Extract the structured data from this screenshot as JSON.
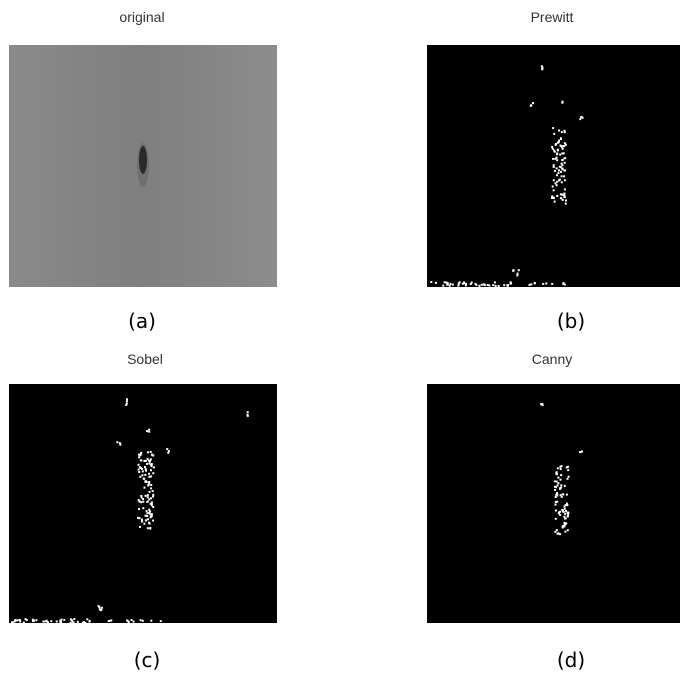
{
  "panels": [
    {
      "title": "original",
      "caption": "(a)"
    },
    {
      "title": "Prewitt",
      "caption": "(b)"
    },
    {
      "title": "Sobel",
      "caption": "(c)"
    },
    {
      "title": "Canny",
      "caption": "(d)"
    }
  ]
}
